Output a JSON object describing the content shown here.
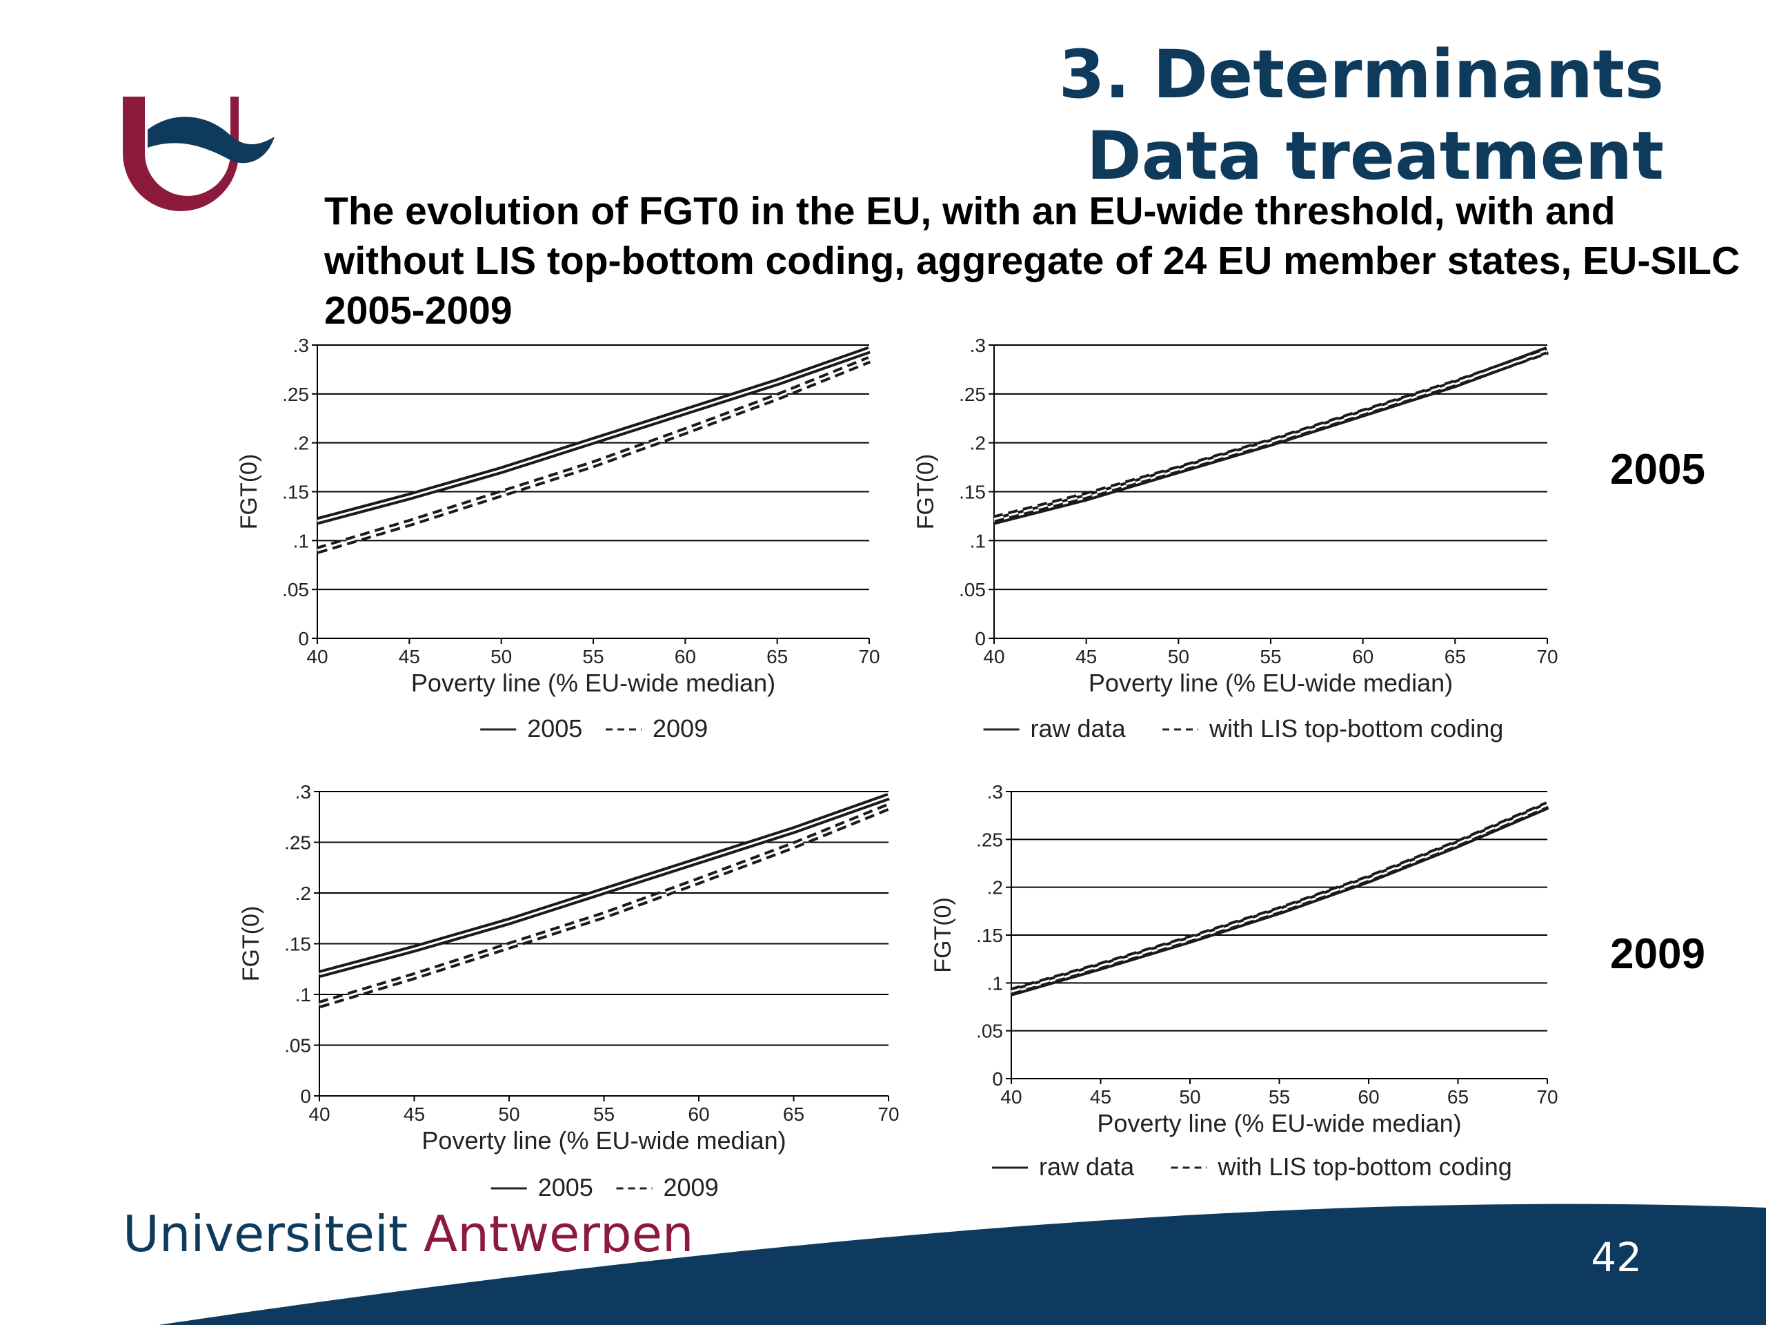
{
  "slide": {
    "title_line1": "3. Determinants",
    "title_line2": "Data treatment",
    "subtitle": "The evolution of FGT0 in the EU, with an EU-wide threshold, with and without LIS top-bottom coding, aggregate of 24 EU member states, EU-SILC 2005-2009",
    "row_labels": [
      "2005",
      "2009"
    ],
    "footer_part1": "Universiteit",
    "footer_part2": "Antwerpen",
    "page_number": "42",
    "colors": {
      "navy": "#0e3a5c",
      "burgundy": "#8b1a3c",
      "wave": "#0d3a5e"
    },
    "icons": [
      "university-logo-icon"
    ]
  },
  "chart_data": [
    {
      "type": "line",
      "xlabel": "Poverty line (% EU-wide median)",
      "ylabel": "FGT(0)",
      "xlim": [
        40,
        70
      ],
      "ylim": [
        0,
        0.3
      ],
      "x_ticks": [
        "40",
        "45",
        "50",
        "55",
        "60",
        "65",
        "70"
      ],
      "y_ticks": [
        "0",
        ".05",
        ".1",
        ".15",
        ".2",
        ".25",
        ".3"
      ],
      "grid": true,
      "legend": "bottom",
      "x": [
        40,
        45,
        50,
        55,
        60,
        65,
        70
      ],
      "series": [
        {
          "name": "2005",
          "style": "solid",
          "values": [
            0.12,
            0.145,
            0.172,
            0.202,
            0.232,
            0.262,
            0.295
          ]
        },
        {
          "name": "2009",
          "style": "dashed",
          "values": [
            0.09,
            0.118,
            0.148,
            0.178,
            0.212,
            0.247,
            0.285
          ]
        }
      ]
    },
    {
      "type": "line",
      "xlabel": "Poverty line (% EU-wide median)",
      "ylabel": "FGT(0)",
      "xlim": [
        40,
        70
      ],
      "ylim": [
        0,
        0.3
      ],
      "x_ticks": [
        "40",
        "45",
        "50",
        "55",
        "60",
        "65",
        "70"
      ],
      "y_ticks": [
        "0",
        ".05",
        ".1",
        ".15",
        ".2",
        ".25",
        ".3"
      ],
      "grid": true,
      "legend": "bottom",
      "x": [
        40,
        45,
        50,
        55,
        60,
        65,
        70
      ],
      "series": [
        {
          "name": "raw data",
          "style": "solid",
          "values": [
            0.12,
            0.144,
            0.172,
            0.2,
            0.23,
            0.26,
            0.295
          ]
        },
        {
          "name": "with LIS top-bottom coding",
          "style": "dashed",
          "values": [
            0.122,
            0.146,
            0.173,
            0.201,
            0.231,
            0.261,
            0.294
          ]
        }
      ]
    },
    {
      "type": "line",
      "xlabel": "Poverty line (% EU-wide median)",
      "ylabel": "FGT(0)",
      "xlim": [
        40,
        70
      ],
      "ylim": [
        0,
        0.3
      ],
      "x_ticks": [
        "40",
        "45",
        "50",
        "55",
        "60",
        "65",
        "70"
      ],
      "y_ticks": [
        "0",
        ".05",
        ".1",
        ".15",
        ".2",
        ".25",
        ".3"
      ],
      "grid": true,
      "legend": "bottom",
      "x": [
        40,
        45,
        50,
        55,
        60,
        65,
        70
      ],
      "series": [
        {
          "name": "2005",
          "style": "solid",
          "values": [
            0.12,
            0.145,
            0.172,
            0.202,
            0.232,
            0.262,
            0.295
          ]
        },
        {
          "name": "2009",
          "style": "dashed",
          "values": [
            0.09,
            0.118,
            0.148,
            0.178,
            0.212,
            0.247,
            0.285
          ]
        }
      ]
    },
    {
      "type": "line",
      "xlabel": "Poverty line (% EU-wide median)",
      "ylabel": "FGT(0)",
      "xlim": [
        40,
        70
      ],
      "ylim": [
        0,
        0.3
      ],
      "x_ticks": [
        "40",
        "45",
        "50",
        "55",
        "60",
        "65",
        "70"
      ],
      "y_ticks": [
        "0",
        ".05",
        ".1",
        ".15",
        ".2",
        ".25",
        ".3"
      ],
      "grid": true,
      "legend": "bottom",
      "x": [
        40,
        45,
        50,
        55,
        60,
        65,
        70
      ],
      "series": [
        {
          "name": "raw data",
          "style": "solid",
          "values": [
            0.09,
            0.117,
            0.145,
            0.175,
            0.208,
            0.245,
            0.285
          ]
        },
        {
          "name": "with LIS top-bottom coding",
          "style": "dashed",
          "values": [
            0.091,
            0.118,
            0.146,
            0.176,
            0.209,
            0.246,
            0.286
          ]
        }
      ]
    }
  ]
}
